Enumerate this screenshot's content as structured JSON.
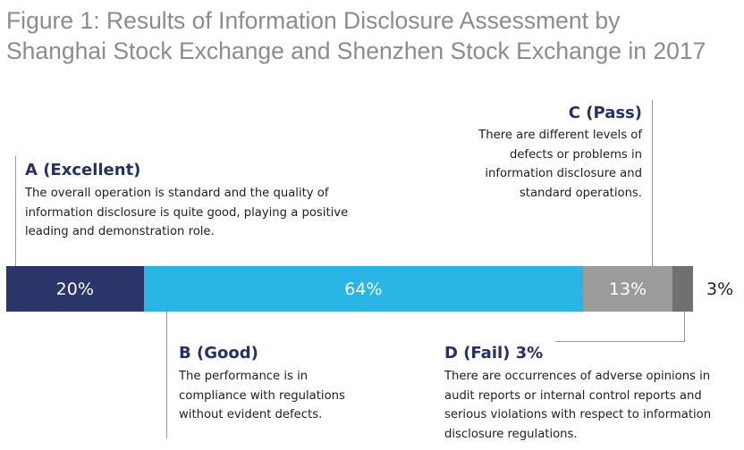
{
  "chart_data": {
    "type": "bar",
    "title": "Figure 1: Results of Information Disclosure Assessment by Shanghai Stock Exchange and Shenzhen Stock Exchange in 2017",
    "orientation": "horizontal-stacked-100",
    "series": [
      {
        "name": "A (Excellent)",
        "value": 20,
        "label": "20%",
        "color": "#2b3569",
        "description": "The overall operation is standard and the quality of information disclosure is quite good, playing a positive leading and demonstration role."
      },
      {
        "name": "B (Good)",
        "value": 64,
        "label": "64%",
        "color": "#29b6e4",
        "description": "The performance is in compliance with regulations without evident defects."
      },
      {
        "name": "C (Pass)",
        "value": 13,
        "label": "13%",
        "color": "#9b9b9b",
        "description": "There are different levels of defects or problems in information disclosure and standard operations."
      },
      {
        "name": "D (Fail) 3%",
        "value": 3,
        "label": "3%",
        "color": "#707070",
        "description": "There are occurrences of adverse opinions in audit reports or internal control reports and serious violations with respect to information disclosure regulations."
      }
    ]
  }
}
